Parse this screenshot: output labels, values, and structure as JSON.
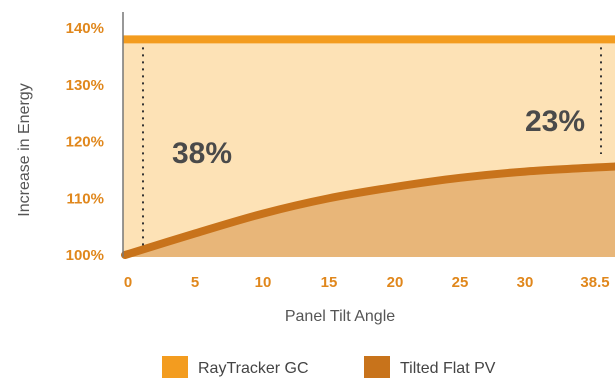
{
  "chart_data": {
    "type": "area",
    "xlabel": "Panel Tilt Angle",
    "ylabel": "Increase in Energy",
    "x_ticks": [
      "0",
      "5",
      "10",
      "15",
      "20",
      "25",
      "30",
      "38.5"
    ],
    "y_ticks": [
      "100%",
      "110%",
      "120%",
      "130%",
      "140%"
    ],
    "ylim": [
      100,
      142
    ],
    "grid": false,
    "legend_position": "bottom",
    "series": [
      {
        "name": "RayTracker GC",
        "color": "#f39c1f",
        "x": [
          0,
          38.5
        ],
        "y": [
          138,
          138
        ]
      },
      {
        "name": "Tilted Flat PV",
        "color": "#c8731b",
        "x": [
          0,
          5,
          10,
          15,
          20,
          25,
          30,
          38.5
        ],
        "y": [
          100,
          103.8,
          107.3,
          110.0,
          112.0,
          113.6,
          114.7,
          115.6
        ]
      }
    ],
    "annotations": [
      {
        "text": "38%",
        "x": 1,
        "y_from": 100,
        "y_to": 138
      },
      {
        "text": "23%",
        "x": 37.5,
        "y_from": 115.6,
        "y_to": 138
      }
    ],
    "colors": {
      "top_fill": "#fde2b6",
      "bottom_fill": "#e8b679",
      "axis": "#777777",
      "tick_text": "#e0871c"
    }
  }
}
